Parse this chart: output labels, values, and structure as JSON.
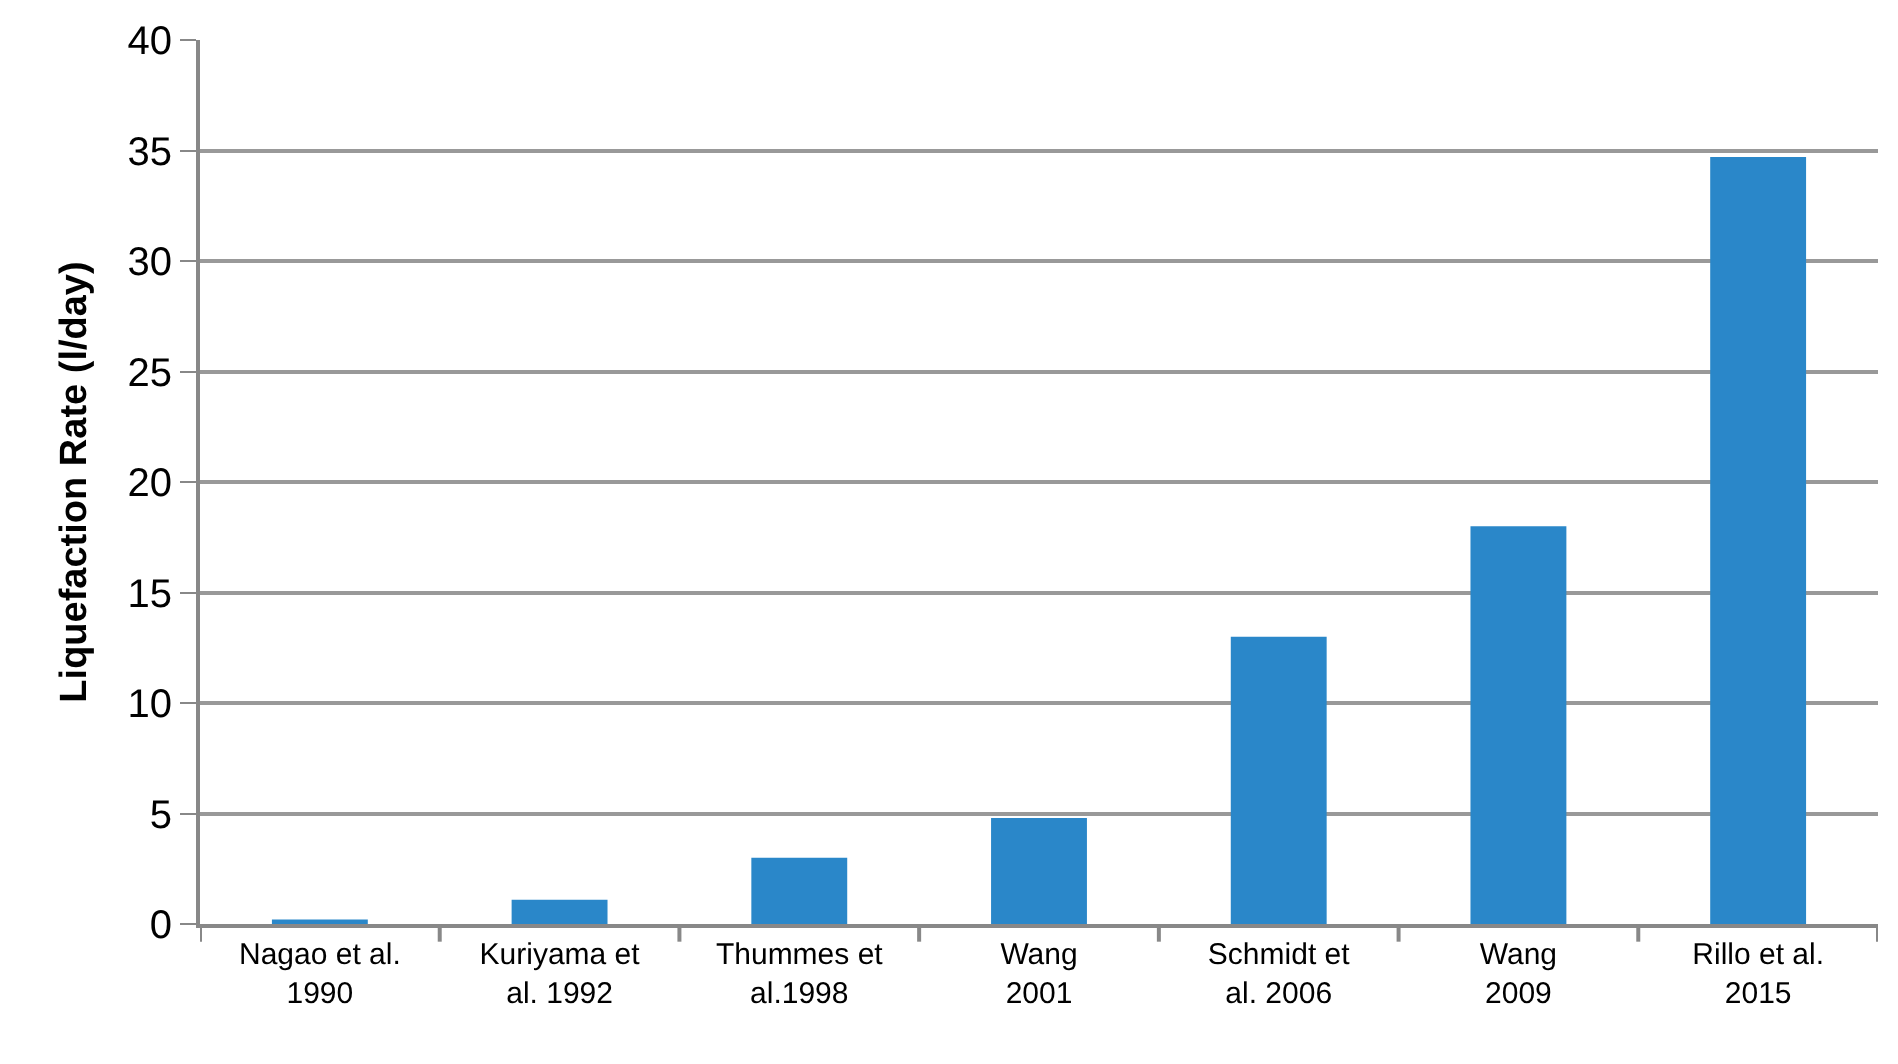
{
  "chart_data": {
    "type": "bar",
    "ylabel": "Liquefaction Rate (l/day)",
    "categories": [
      "Nagao et al.\n1990",
      "Kuriyama et\nal. 1992",
      "Thummes et\nal.1998",
      "Wang\n2001",
      "Schmidt et\nal. 2006",
      "Wang\n2009",
      "Rillo et al.\n2015"
    ],
    "values": [
      0.2,
      1.1,
      3.0,
      4.8,
      13.0,
      18.0,
      34.7
    ],
    "color": "#2a87c9",
    "ylim": [
      0,
      40
    ],
    "yticks": [
      0,
      5,
      10,
      15,
      20,
      25,
      30,
      35,
      40
    ],
    "grid": "y"
  }
}
